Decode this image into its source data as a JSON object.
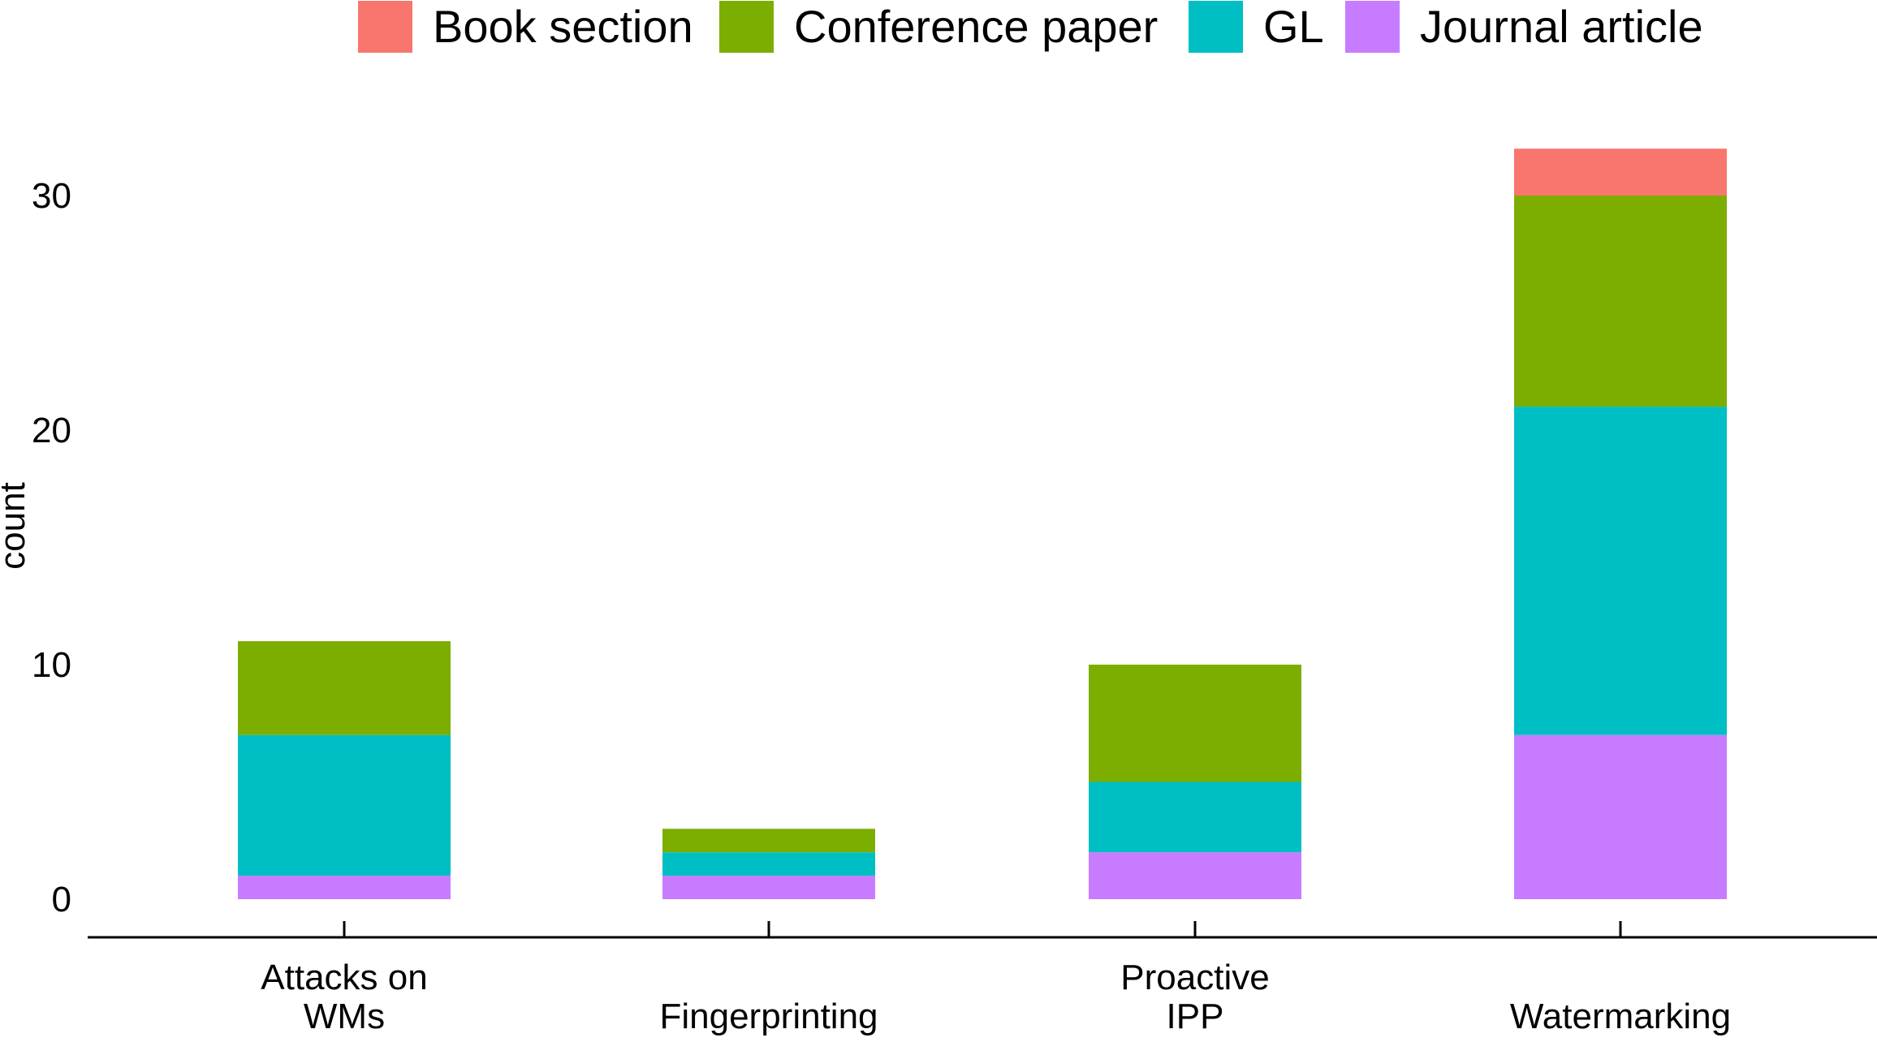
{
  "chart_data": {
    "type": "bar",
    "stacked": true,
    "categories": [
      [
        "Attacks on",
        "WMs"
      ],
      [
        "Fingerprinting"
      ],
      [
        "Proactive",
        "IPP"
      ],
      [
        "Watermarking"
      ]
    ],
    "series": [
      {
        "name": "Journal article",
        "color": "#C77CFF",
        "values": [
          1,
          1,
          2,
          7
        ]
      },
      {
        "name": "GL",
        "color": "#00BFC4",
        "values": [
          6,
          1,
          3,
          14
        ]
      },
      {
        "name": "Conference paper",
        "color": "#7CAE00",
        "values": [
          4,
          1,
          5,
          9
        ]
      },
      {
        "name": "Book section",
        "color": "#F8766D",
        "values": [
          0,
          0,
          0,
          2
        ]
      }
    ],
    "legend_order": [
      "Book section",
      "Conference paper",
      "GL",
      "Journal article"
    ],
    "legend_position": "top",
    "xlabel": "",
    "ylabel": "count",
    "ylim": [
      0,
      32
    ],
    "yticks": [
      0,
      10,
      20,
      30
    ],
    "grid": false
  }
}
